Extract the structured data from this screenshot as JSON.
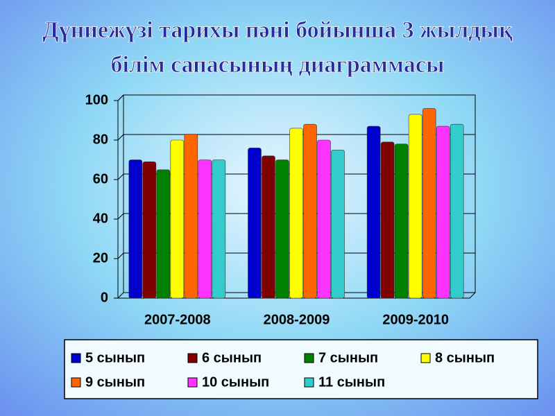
{
  "chart_data": {
    "type": "bar",
    "title": [
      "Дүниежүзі тарихы пәні бойынша 3 жылдық",
      "білім сапасының диаграммасы"
    ],
    "categories": [
      "2007-2008",
      "2008-2009",
      "2009-2010"
    ],
    "series": [
      {
        "name": "5 сынып",
        "color": "#0000cc",
        "values": [
          70,
          76,
          87
        ]
      },
      {
        "name": "6 сынып",
        "color": "#800000",
        "values": [
          69,
          72,
          79
        ]
      },
      {
        "name": "7 сынып",
        "color": "#008000",
        "values": [
          65,
          70,
          78
        ]
      },
      {
        "name": "8 сынып",
        "color": "#ffff00",
        "values": [
          80,
          86,
          93
        ]
      },
      {
        "name": "9 сынып",
        "color": "#ff6600",
        "values": [
          83,
          88,
          96
        ]
      },
      {
        "name": "10 сынып",
        "color": "#ff33ff",
        "values": [
          70,
          80,
          87
        ]
      },
      {
        "name": "11 сынып",
        "color": "#33cccc",
        "values": [
          70,
          75,
          88
        ]
      }
    ],
    "ylim": [
      0,
      100
    ],
    "yticks": [
      0,
      20,
      40,
      60,
      80,
      100
    ],
    "grid": true,
    "legend": "bottom"
  }
}
